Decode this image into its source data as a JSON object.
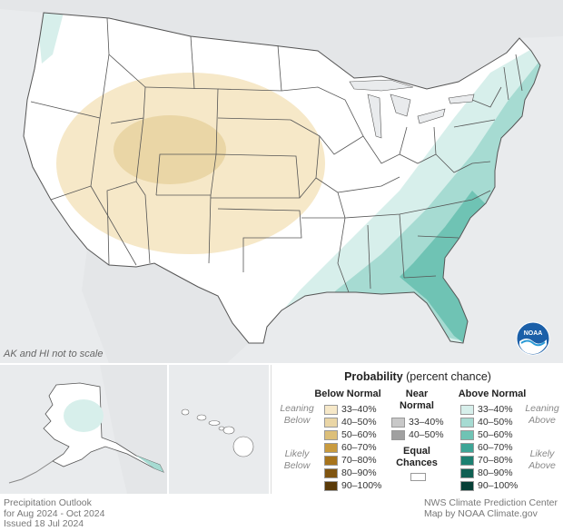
{
  "map": {
    "scale_note": "AK and HI not to scale",
    "colors": {
      "background": "#e9ebed",
      "land": "#ffffff",
      "border": "#555555",
      "below_33_40": "#f6e8c8",
      "below_40_50": "#ead6a6",
      "above_33_40": "#d7efeb",
      "above_40_50": "#a6dbd2",
      "above_50_60": "#6fc3b4"
    },
    "logo_name": "noaa-logo"
  },
  "legend": {
    "title_bold": "Probability",
    "title_rest": " (percent chance)",
    "below": {
      "header": "Below Normal",
      "leaning": "Leaning Below",
      "likely": "Likely Below",
      "items": [
        {
          "label": "33–40%",
          "color": "#f6e8c8"
        },
        {
          "label": "40–50%",
          "color": "#ead6a6"
        },
        {
          "label": "50–60%",
          "color": "#dcbf79"
        },
        {
          "label": "60–70%",
          "color": "#c99b3f"
        },
        {
          "label": "70–80%",
          "color": "#a7741c"
        },
        {
          "label": "80–90%",
          "color": "#7f5410"
        },
        {
          "label": "90–100%",
          "color": "#5a3a08"
        }
      ]
    },
    "near": {
      "header": "Near Normal",
      "items": [
        {
          "label": "33–40%",
          "color": "#c8c8c8"
        },
        {
          "label": "40–50%",
          "color": "#a0a0a0"
        }
      ]
    },
    "equal": {
      "label": "Equal Chances",
      "color": "#ffffff"
    },
    "above": {
      "header": "Above Normal",
      "leaning": "Leaning Above",
      "likely": "Likely Above",
      "items": [
        {
          "label": "33–40%",
          "color": "#d7efeb"
        },
        {
          "label": "40–50%",
          "color": "#a6dbd2"
        },
        {
          "label": "50–60%",
          "color": "#6fc3b4"
        },
        {
          "label": "60–70%",
          "color": "#3ea596"
        },
        {
          "label": "70–80%",
          "color": "#1c8071"
        },
        {
          "label": "80–90%",
          "color": "#0e5f52"
        },
        {
          "label": "90–100%",
          "color": "#063f36"
        }
      ]
    }
  },
  "footer": {
    "title": "Precipitation Outlook",
    "period": "for Aug 2024 - Oct 2024",
    "issued": "Issued 18 Jul 2024",
    "org": "NWS Climate Prediction Center",
    "credit": "Map by NOAA Climate.gov"
  }
}
